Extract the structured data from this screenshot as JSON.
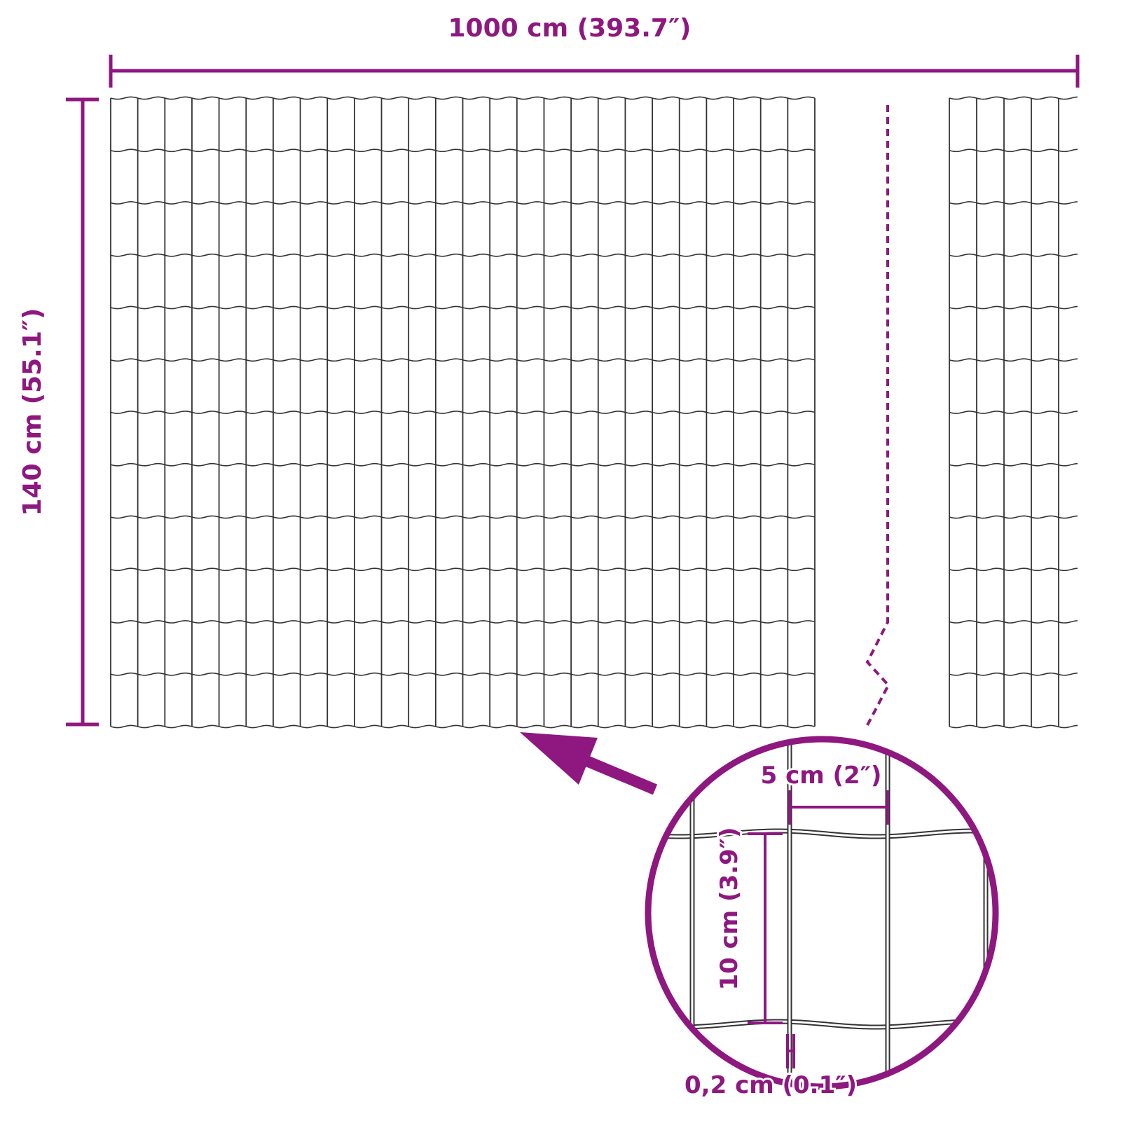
{
  "colors": {
    "accent": "#8e1780",
    "wire": "#333333"
  },
  "labels": {
    "width": "1000 cm (393.7″)",
    "height": "140 cm (55.1″)",
    "mesh_width": "5 cm (2″)",
    "mesh_height": "10 cm (3.9″)",
    "wire_thickness": "0,2 cm (0.1″)"
  },
  "icons": {
    "pointer": "arrow-icon",
    "detail": "magnifier-circle"
  }
}
